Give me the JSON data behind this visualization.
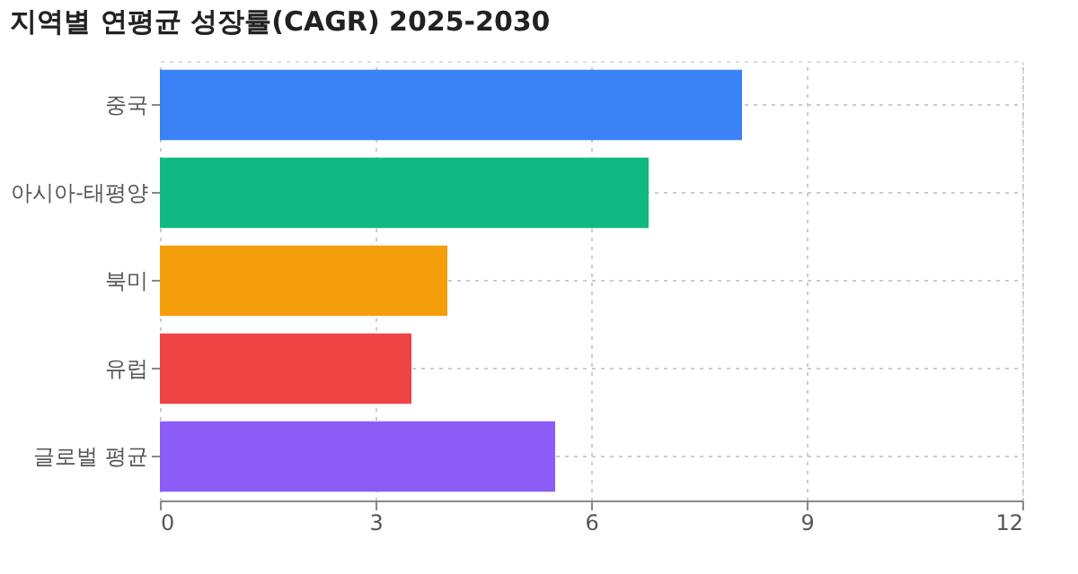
{
  "chart_data": {
    "type": "bar",
    "orientation": "horizontal",
    "title": "지역별 연평균 성장률(CAGR) 2025-2030",
    "categories": [
      "중국",
      "아시아-태평양",
      "북미",
      "유럽",
      "글로벌 평균"
    ],
    "values": [
      8.1,
      6.8,
      4.0,
      3.5,
      5.5
    ],
    "colors": [
      "#3b82f6",
      "#10b981",
      "#f59e0b",
      "#ef4444",
      "#8b5cf6"
    ],
    "xlim": [
      0,
      12
    ],
    "xticks": [
      0,
      3,
      6,
      9,
      12
    ],
    "grid": true
  }
}
